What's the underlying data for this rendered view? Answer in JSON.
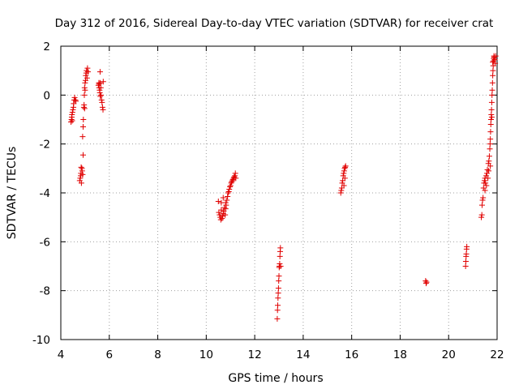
{
  "chart_data": {
    "type": "scatter",
    "title": "Day 312 of 2016, Sidereal Day-to-day VTEC variation (SDTVAR) for receiver crat",
    "xlabel": "GPS time / hours",
    "ylabel": "SDTVAR / TECUs",
    "xlim": [
      4,
      22
    ],
    "ylim": [
      -10,
      2
    ],
    "xticks": [
      4,
      6,
      8,
      10,
      12,
      14,
      16,
      18,
      20,
      22
    ],
    "yticks": [
      -10,
      -8,
      -6,
      -4,
      -2,
      0,
      2
    ],
    "grid": true,
    "marker": "plus",
    "color": "#e00000",
    "series": [
      {
        "name": "SDTVAR",
        "points": [
          [
            4.42,
            -1.1
          ],
          [
            4.44,
            -1.0
          ],
          [
            4.45,
            -0.9
          ],
          [
            4.46,
            -0.8
          ],
          [
            4.47,
            -1.05
          ],
          [
            4.48,
            -0.7
          ],
          [
            4.5,
            -0.6
          ],
          [
            4.52,
            -0.5
          ],
          [
            4.53,
            -0.35
          ],
          [
            4.55,
            -0.2
          ],
          [
            4.57,
            -0.1
          ],
          [
            4.6,
            -0.2
          ],
          [
            4.62,
            -0.25
          ],
          [
            4.78,
            -3.5
          ],
          [
            4.8,
            -3.4
          ],
          [
            4.82,
            -3.3
          ],
          [
            4.83,
            -3.2
          ],
          [
            4.84,
            -2.95
          ],
          [
            4.85,
            -3.6
          ],
          [
            4.87,
            -3.0
          ],
          [
            4.88,
            -3.1
          ],
          [
            4.9,
            -3.25
          ],
          [
            4.92,
            -2.45
          ],
          [
            4.9,
            -1.7
          ],
          [
            4.92,
            -1.3
          ],
          [
            4.93,
            -1.0
          ],
          [
            4.95,
            -0.5
          ],
          [
            4.96,
            -0.4
          ],
          [
            4.97,
            -0.0
          ],
          [
            4.98,
            0.3
          ],
          [
            5.0,
            0.5
          ],
          [
            5.02,
            0.6
          ],
          [
            5.03,
            0.8
          ],
          [
            5.05,
            0.9
          ],
          [
            5.06,
            1.0
          ],
          [
            5.08,
            0.7
          ],
          [
            5.1,
            1.1
          ],
          [
            5.12,
            0.95
          ],
          [
            5.0,
            0.2
          ],
          [
            4.98,
            -0.55
          ],
          [
            5.55,
            0.4
          ],
          [
            5.57,
            0.5
          ],
          [
            5.58,
            0.3
          ],
          [
            5.6,
            0.2
          ],
          [
            5.61,
            0.1
          ],
          [
            5.62,
            0.5
          ],
          [
            5.63,
            -0.05
          ],
          [
            5.65,
            0.3
          ],
          [
            5.66,
            0.0
          ],
          [
            5.68,
            -0.2
          ],
          [
            5.7,
            -0.3
          ],
          [
            5.72,
            -0.5
          ],
          [
            5.74,
            -0.6
          ],
          [
            5.75,
            0.55
          ],
          [
            5.62,
            0.95
          ],
          [
            5.58,
            0.45
          ],
          [
            10.5,
            -4.35
          ],
          [
            10.52,
            -4.8
          ],
          [
            10.55,
            -4.9
          ],
          [
            10.58,
            -5.0
          ],
          [
            10.6,
            -5.1
          ],
          [
            10.62,
            -4.7
          ],
          [
            10.65,
            -5.05
          ],
          [
            10.68,
            -4.95
          ],
          [
            10.7,
            -4.85
          ],
          [
            10.72,
            -4.75
          ],
          [
            10.75,
            -4.6
          ],
          [
            10.78,
            -4.9
          ],
          [
            10.8,
            -4.65
          ],
          [
            10.82,
            -4.5
          ],
          [
            10.85,
            -4.3
          ],
          [
            10.88,
            -4.15
          ],
          [
            10.9,
            -4.0
          ],
          [
            10.93,
            -3.95
          ],
          [
            10.95,
            -3.85
          ],
          [
            10.98,
            -3.75
          ],
          [
            11.0,
            -3.7
          ],
          [
            11.03,
            -3.6
          ],
          [
            11.05,
            -3.55
          ],
          [
            11.08,
            -3.5
          ],
          [
            11.1,
            -3.45
          ],
          [
            11.13,
            -3.4
          ],
          [
            11.15,
            -3.35
          ],
          [
            11.18,
            -3.3
          ],
          [
            11.2,
            -3.2
          ],
          [
            11.22,
            -3.4
          ],
          [
            10.62,
            -4.4
          ],
          [
            10.7,
            -4.2
          ],
          [
            10.8,
            -4.4
          ],
          [
            12.93,
            -9.15
          ],
          [
            12.94,
            -8.8
          ],
          [
            12.95,
            -8.6
          ],
          [
            12.96,
            -8.3
          ],
          [
            12.97,
            -8.1
          ],
          [
            12.98,
            -7.9
          ],
          [
            12.99,
            -7.6
          ],
          [
            13.0,
            -7.4
          ],
          [
            13.01,
            -7.05
          ],
          [
            13.02,
            -7.0
          ],
          [
            13.03,
            -6.9
          ],
          [
            13.04,
            -6.6
          ],
          [
            13.05,
            -6.4
          ],
          [
            13.06,
            -6.25
          ],
          [
            13.07,
            -7.0
          ],
          [
            15.55,
            -4.0
          ],
          [
            15.57,
            -3.9
          ],
          [
            15.59,
            -3.8
          ],
          [
            15.61,
            -3.6
          ],
          [
            15.63,
            -3.5
          ],
          [
            15.65,
            -3.3
          ],
          [
            15.67,
            -3.2
          ],
          [
            15.69,
            -3.1
          ],
          [
            15.71,
            -3.0
          ],
          [
            15.73,
            -2.95
          ],
          [
            15.75,
            -2.9
          ],
          [
            15.72,
            -3.4
          ],
          [
            15.68,
            -3.7
          ],
          [
            19.05,
            -7.6
          ],
          [
            19.07,
            -7.7
          ],
          [
            19.09,
            -7.65
          ],
          [
            20.7,
            -7.0
          ],
          [
            20.71,
            -6.8
          ],
          [
            20.72,
            -6.6
          ],
          [
            20.73,
            -6.5
          ],
          [
            20.74,
            -6.3
          ],
          [
            20.75,
            -6.2
          ],
          [
            21.35,
            -5.0
          ],
          [
            21.37,
            -4.9
          ],
          [
            21.38,
            -4.5
          ],
          [
            21.4,
            -4.3
          ],
          [
            21.42,
            -4.2
          ],
          [
            21.44,
            -3.8
          ],
          [
            21.46,
            -3.6
          ],
          [
            21.48,
            -3.5
          ],
          [
            21.5,
            -3.4
          ],
          [
            21.52,
            -3.6
          ],
          [
            21.55,
            -3.3
          ],
          [
            21.58,
            -3.2
          ],
          [
            21.6,
            -3.05
          ],
          [
            21.62,
            -3.4
          ],
          [
            21.64,
            -2.8
          ],
          [
            21.66,
            -2.7
          ],
          [
            21.68,
            -2.5
          ],
          [
            21.7,
            -2.2
          ],
          [
            21.71,
            -2.0
          ],
          [
            21.72,
            -1.8
          ],
          [
            21.73,
            -1.5
          ],
          [
            21.74,
            -1.2
          ],
          [
            21.75,
            -1.0
          ],
          [
            21.76,
            -0.8
          ],
          [
            21.77,
            -0.6
          ],
          [
            21.78,
            -0.3
          ],
          [
            21.79,
            0.0
          ],
          [
            21.8,
            0.2
          ],
          [
            21.81,
            0.5
          ],
          [
            21.82,
            0.8
          ],
          [
            21.83,
            1.0
          ],
          [
            21.84,
            1.2
          ],
          [
            21.85,
            1.4
          ],
          [
            21.86,
            1.5
          ],
          [
            21.87,
            1.6
          ],
          [
            21.88,
            1.55
          ],
          [
            21.9,
            1.45
          ],
          [
            21.92,
            1.3
          ],
          [
            21.94,
            1.6
          ],
          [
            21.82,
            1.35
          ],
          [
            21.78,
            -0.9
          ],
          [
            21.72,
            -2.9
          ],
          [
            21.65,
            -3.1
          ],
          [
            21.56,
            -3.7
          ],
          [
            21.5,
            -3.9
          ]
        ]
      }
    ]
  }
}
